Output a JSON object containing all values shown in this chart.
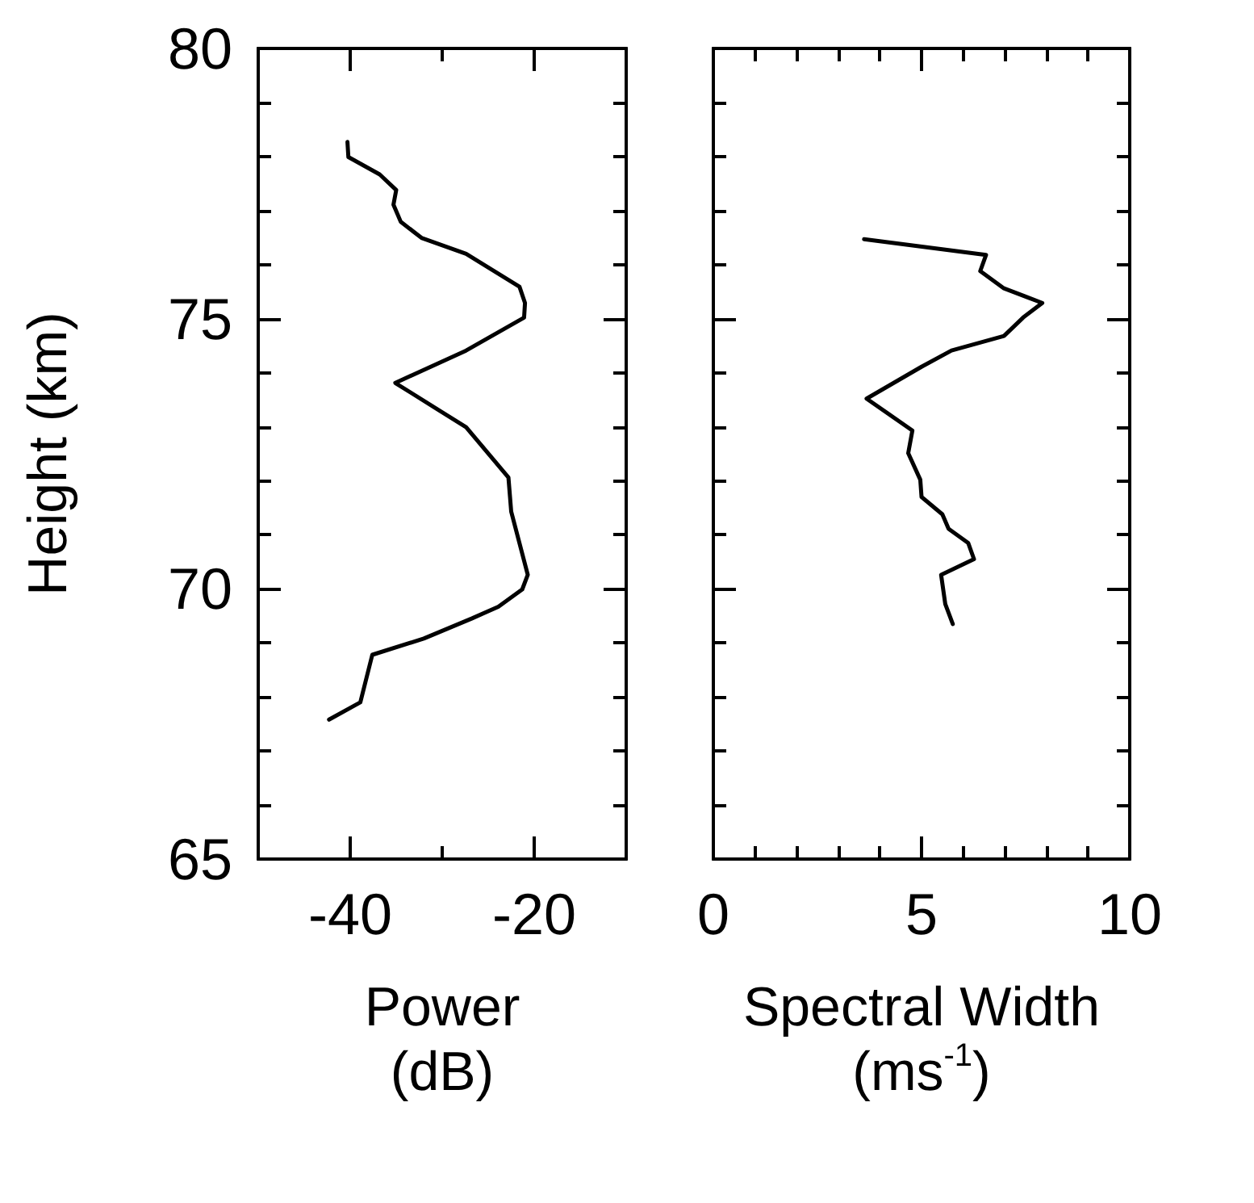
{
  "chart_data": [
    {
      "type": "line",
      "xlabel": "Power\n(dB)",
      "ylabel": "Height (km)",
      "xlim": [
        -50,
        -10
      ],
      "xticks": [
        -40,
        {
          "value": -30,
          "label": null
        },
        -20
      ],
      "ylim": [
        65,
        80
      ],
      "yticks": [
        65,
        {
          "value": 66,
          "label": null
        },
        {
          "value": 67,
          "label": null
        },
        {
          "value": 68,
          "label": null
        },
        {
          "value": 69,
          "label": null
        },
        70,
        {
          "value": 71,
          "label": null
        },
        {
          "value": 72,
          "label": null
        },
        {
          "value": 73,
          "label": null
        },
        {
          "value": 74,
          "label": null
        },
        75,
        {
          "value": 76,
          "label": null
        },
        {
          "value": 77,
          "label": null
        },
        {
          "value": 78,
          "label": null
        },
        {
          "value": 79,
          "label": null
        },
        80
      ],
      "grid": false,
      "series": [
        {
          "color": "#000000",
          "x": [
            -40.3,
            -40.2,
            -36.8,
            -35.0,
            -35.3,
            -34.5,
            -32.2,
            -27.4,
            -21.6,
            -21.0,
            -21.1,
            -27.4,
            -35.1,
            -27.4,
            -22.8,
            -22.5,
            -20.7,
            -21.3,
            -23.9,
            -26.8,
            -32.0,
            -37.6,
            -38.9,
            -42.3
          ],
          "values": [
            78.27,
            77.99,
            77.67,
            77.38,
            77.11,
            76.79,
            76.49,
            76.2,
            75.59,
            75.29,
            75.02,
            74.41,
            73.81,
            72.99,
            72.06,
            71.43,
            70.26,
            69.99,
            69.67,
            69.45,
            69.08,
            68.78,
            67.9,
            67.58
          ]
        }
      ]
    },
    {
      "type": "line",
      "xlabel": "Spectral Width\n(ms$^{-1}$)",
      "xlim": [
        0,
        10
      ],
      "xticks": [
        0,
        {
          "value": 1,
          "label": null
        },
        {
          "value": 2,
          "label": null
        },
        {
          "value": 3,
          "label": null
        },
        {
          "value": 4,
          "label": null
        },
        5,
        {
          "value": 6,
          "label": null
        },
        {
          "value": 7,
          "label": null
        },
        {
          "value": 8,
          "label": null
        },
        {
          "value": 9,
          "label": null
        },
        10
      ],
      "ylim": [
        65,
        80
      ],
      "yticks": [
        65,
        {
          "value": 66,
          "label": null
        },
        {
          "value": 67,
          "label": null
        },
        {
          "value": 68,
          "label": null
        },
        {
          "value": 69,
          "label": null
        },
        70,
        {
          "value": 71,
          "label": null
        },
        {
          "value": 72,
          "label": null
        },
        {
          "value": 73,
          "label": null
        },
        {
          "value": 74,
          "label": null
        },
        75,
        {
          "value": 76,
          "label": null
        },
        {
          "value": 77,
          "label": null
        },
        {
          "value": 78,
          "label": null
        },
        {
          "value": 79,
          "label": null
        },
        80
      ],
      "tick_labels": "x",
      "grid": false,
      "series": [
        {
          "color": "#000000",
          "x": [
            3.62,
            6.55,
            6.41,
            6.98,
            7.9,
            7.44,
            6.98,
            5.72,
            5.0,
            3.68,
            4.78,
            4.68,
            4.97,
            5.0,
            5.5,
            5.65,
            6.12,
            6.26,
            5.47,
            5.57,
            5.75
          ],
          "values": [
            76.47,
            76.18,
            75.88,
            75.56,
            75.29,
            75.02,
            74.68,
            74.41,
            74.11,
            73.52,
            72.93,
            72.51,
            72.02,
            71.7,
            71.38,
            71.11,
            70.85,
            70.55,
            70.26,
            69.72,
            69.35
          ]
        }
      ]
    }
  ]
}
